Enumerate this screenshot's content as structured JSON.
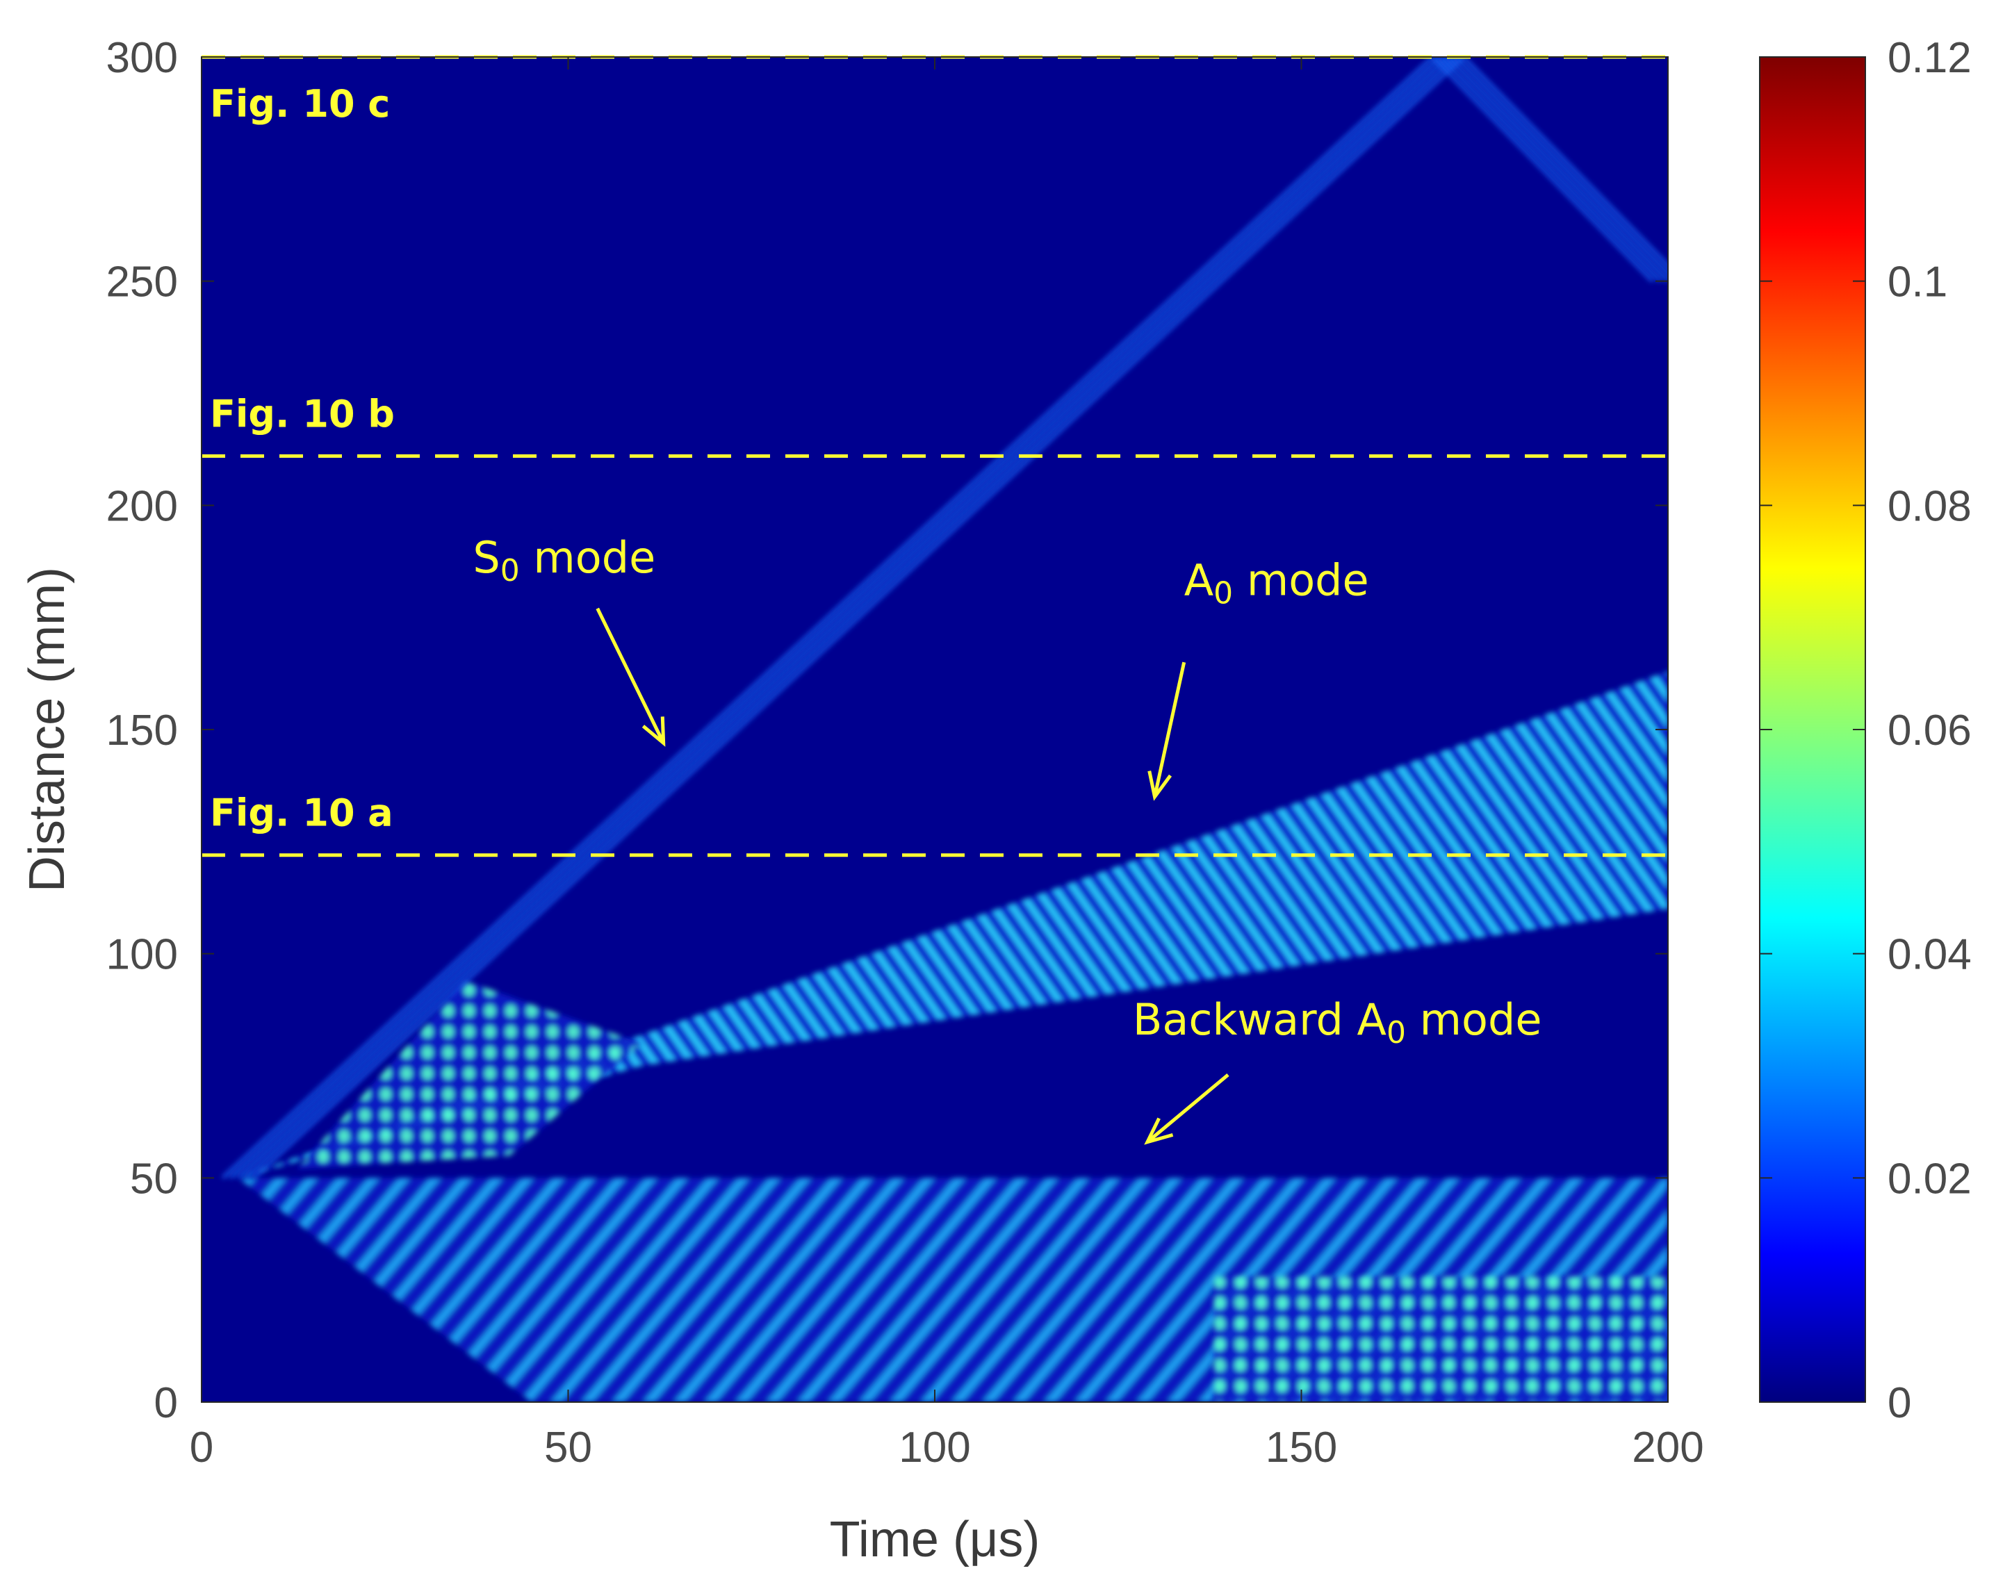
{
  "chart_data": {
    "type": "heatmap",
    "title": "",
    "xlabel": "Time (μs)",
    "ylabel": "Distance (mm)",
    "xlim": [
      0,
      200
    ],
    "ylim": [
      0,
      300
    ],
    "xticks": [
      0,
      50,
      100,
      150,
      200
    ],
    "xtick_labels": [
      "0",
      "50",
      "100",
      "150",
      "200"
    ],
    "yticks": [
      0,
      50,
      100,
      150,
      200,
      250,
      300
    ],
    "ytick_labels": [
      "0",
      "50",
      "100",
      "150",
      "200",
      "250",
      "300"
    ],
    "colormap": "jet",
    "colorbar": {
      "min": 0,
      "max": 0.12,
      "ticks": [
        0,
        0.02,
        0.04,
        0.06,
        0.08,
        0.1,
        0.12
      ],
      "tick_labels": [
        "0",
        "0.02",
        "0.04",
        "0.06",
        "0.08",
        "0.1",
        "0.12"
      ]
    },
    "excitation_point": {
      "time": 5,
      "distance": 50
    },
    "reference_lines": [
      {
        "label": "Fig. 10 a",
        "distance": 122
      },
      {
        "label": "Fig. 10 b",
        "distance": 211
      },
      {
        "label": "Fig. 10 c",
        "distance": 300
      }
    ],
    "wave_modes": [
      {
        "name": "S0",
        "direction": "forward",
        "start": {
          "time": 5,
          "distance": 50
        },
        "end": {
          "time": 170,
          "distance": 300
        },
        "peak_amplitude": 0.02
      },
      {
        "name": "S0",
        "direction": "reflected",
        "start": {
          "time": 170,
          "distance": 300
        },
        "end": {
          "time": 200,
          "distance": 250
        },
        "peak_amplitude": 0.02
      },
      {
        "name": "A0",
        "direction": "forward",
        "start": {
          "time": 5,
          "distance": 50
        },
        "end": {
          "time": 200,
          "distance": 145
        },
        "peak_amplitude": 0.05
      },
      {
        "name": "A0",
        "direction": "backward",
        "start": {
          "time": 5,
          "distance": 50
        },
        "end": {
          "time": 140,
          "distance": 0
        },
        "peak_amplitude": 0.05
      }
    ],
    "annotations": [
      {
        "text_main": "S",
        "subscript": "0",
        "text_rest": " mode",
        "label_at": {
          "time": 37,
          "distance": 185
        },
        "arrow_from": {
          "time": 54,
          "distance": 177
        },
        "arrow_to": {
          "time": 63,
          "distance": 147
        }
      },
      {
        "text_main": "A",
        "subscript": "0",
        "text_rest": " mode",
        "label_at": {
          "time": 134,
          "distance": 180
        },
        "arrow_from": {
          "time": 134,
          "distance": 165
        },
        "arrow_to": {
          "time": 130,
          "distance": 135
        }
      },
      {
        "text_main": "Backward A",
        "subscript": "0",
        "text_rest": " mode",
        "label_at": {
          "time": 127,
          "distance": 82
        },
        "arrow_from": {
          "time": 140,
          "distance": 73
        },
        "arrow_to": {
          "time": 129,
          "distance": 58
        }
      }
    ]
  }
}
